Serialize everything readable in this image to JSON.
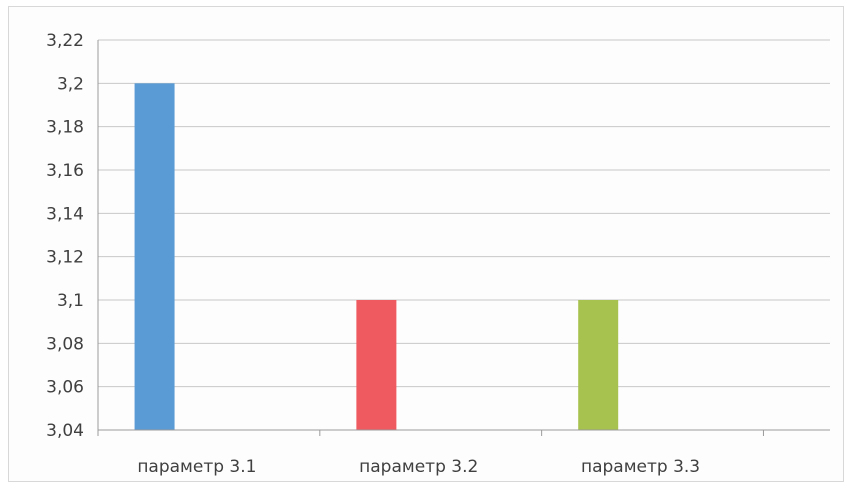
{
  "chart_data": {
    "type": "bar",
    "title": "",
    "xlabel": "",
    "ylabel": "",
    "categories": [
      "параметр 3.1",
      "параметр 3.2",
      "параметр 3.3"
    ],
    "values": [
      3.2,
      3.1,
      3.1
    ],
    "colors": [
      "#5b9bd5",
      "#ee5a5f",
      "#a7c24f"
    ],
    "ylim": [
      3.04,
      3.22
    ],
    "yticks": [
      "3,04",
      "3,06",
      "3,08",
      "3,1",
      "3,12",
      "3,14",
      "3,16",
      "3,18",
      "3,2",
      "3,22"
    ],
    "grid": true,
    "legend": "none"
  }
}
